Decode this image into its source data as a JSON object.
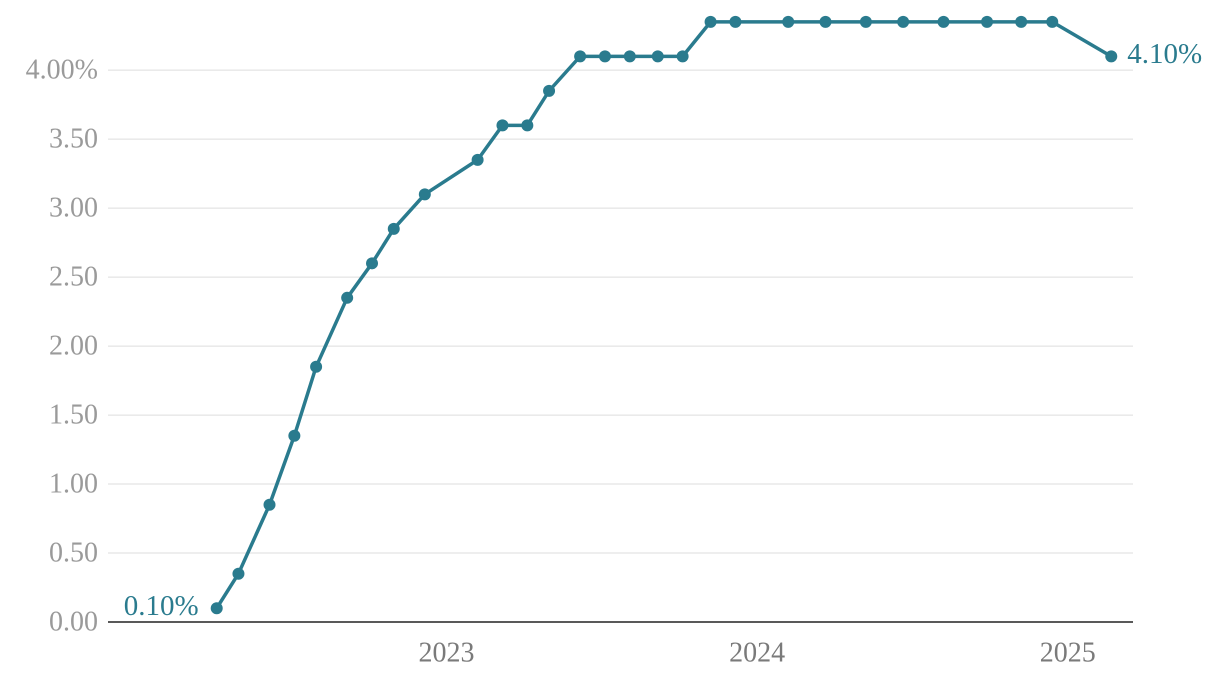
{
  "chart_data": {
    "type": "line",
    "x": [
      2022.26,
      2022.33,
      2022.43,
      2022.51,
      2022.58,
      2022.68,
      2022.76,
      2022.83,
      2022.93,
      2023.1,
      2023.18,
      2023.26,
      2023.33,
      2023.43,
      2023.51,
      2023.59,
      2023.68,
      2023.76,
      2023.85,
      2023.93,
      2024.1,
      2024.22,
      2024.35,
      2024.47,
      2024.6,
      2024.74,
      2024.85,
      2024.95,
      2025.14
    ],
    "values": [
      0.1,
      0.35,
      0.85,
      1.35,
      1.85,
      2.35,
      2.6,
      2.85,
      3.1,
      3.35,
      3.6,
      3.6,
      3.85,
      4.1,
      4.1,
      4.1,
      4.1,
      4.1,
      4.35,
      4.35,
      4.35,
      4.35,
      4.35,
      4.35,
      4.35,
      4.35,
      4.35,
      4.35,
      4.1
    ],
    "value_labels": [
      "0.10%",
      null,
      null,
      null,
      null,
      null,
      null,
      null,
      null,
      null,
      null,
      null,
      null,
      null,
      null,
      null,
      null,
      null,
      null,
      null,
      null,
      null,
      null,
      null,
      null,
      null,
      null,
      null,
      "4.10%"
    ],
    "color": "#2a7b8e",
    "xlim": [
      2021.91,
      2025.21
    ],
    "xticks": [
      2023,
      2024,
      2025
    ],
    "ylim": [
      0,
      4.4
    ],
    "yticks": [
      {
        "value": 0,
        "label": "0.00"
      },
      {
        "value": 0.5,
        "label": "0.50"
      },
      {
        "value": 1,
        "label": "1.00"
      },
      {
        "value": 1.5,
        "label": "1.50"
      },
      {
        "value": 2,
        "label": "2.00"
      },
      {
        "value": 2.5,
        "label": "2.50"
      },
      {
        "value": 3,
        "label": "3.00"
      },
      {
        "value": 3.5,
        "label": "3.50"
      },
      {
        "value": 4,
        "label": "4.00%"
      }
    ],
    "grid": true
  }
}
